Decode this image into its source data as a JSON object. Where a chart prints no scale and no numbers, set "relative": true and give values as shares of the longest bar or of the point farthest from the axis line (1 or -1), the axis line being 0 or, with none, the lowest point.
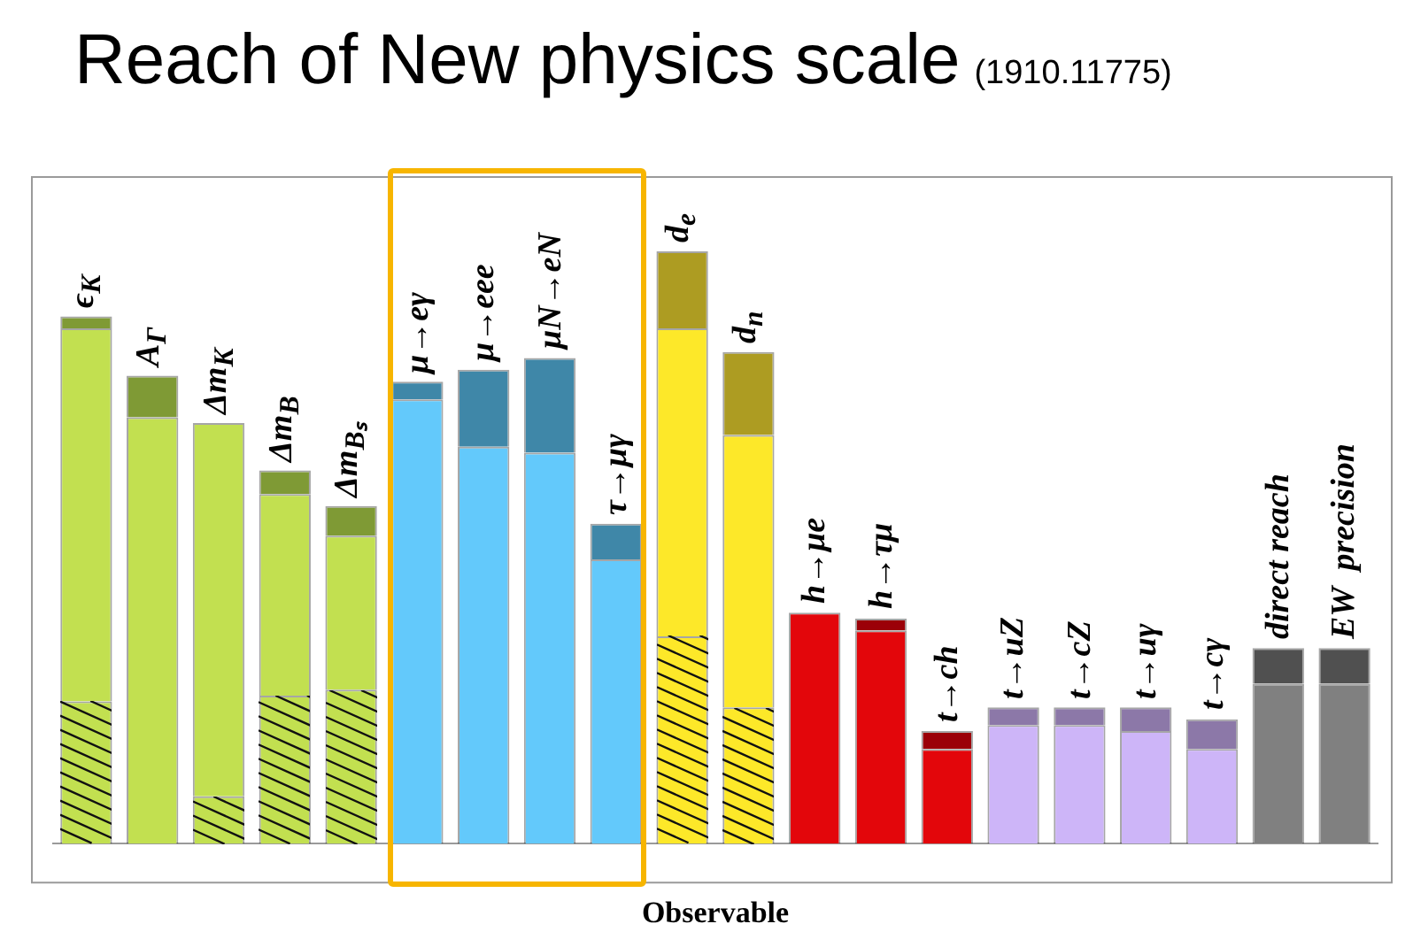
{
  "chart_data": {
    "type": "bar",
    "title": "Reach of New physics scale",
    "subtitle": "(1910.11775)",
    "xlabel": "Observable",
    "relative": true,
    "stacked": true,
    "legend": false,
    "grid": false,
    "categories": [
      "ϵ$_{K}$",
      "A$_{Γ}$",
      "Δm$_{K}$",
      "Δm$_{B}$",
      "Δm$_{Bₛ}$",
      "μ→eγ",
      "μ→eee",
      "μN→eN",
      "τ→μγ",
      "d$_{e}$",
      "d$_{n}$",
      "h→μe",
      "h→τμ",
      "t→ch",
      "t→uZ",
      "t→cZ",
      "t→uγ",
      "t→cγ",
      "direct reach",
      "EW  precision"
    ],
    "series": [
      {
        "values": [
          0.24,
          null,
          0.08,
          0.25,
          0.26,
          null,
          null,
          null,
          null,
          0.35,
          0.23,
          null,
          null,
          null,
          null,
          null,
          null,
          null,
          null,
          null
        ],
        "colors": [
          "#c2e050",
          "#c2e050",
          "#c2e050",
          "#c2e050",
          "#c2e050",
          "#63c9fb",
          "#63c9fb",
          "#63c9fb",
          "#63c9fb",
          "#fde829",
          "#fde829",
          "#e3060b",
          "#e3060b",
          "#e3060b",
          "#cdb5f8",
          "#cdb5f8",
          "#cdb5f8",
          "#cdb5f8",
          "#808080",
          "#808080"
        ]
      },
      {
        "values": [
          0.63,
          0.72,
          0.63,
          0.34,
          0.26,
          0.75,
          0.67,
          0.66,
          0.48,
          0.52,
          0.46,
          0.39,
          0.36,
          0.16,
          0.2,
          0.2,
          0.19,
          0.16,
          0.27,
          0.27
        ],
        "colors": [
          "#c2e050",
          "#c2e050",
          "#c2e050",
          "#c2e050",
          "#c2e050",
          "#63c9fb",
          "#63c9fb",
          "#63c9fb",
          "#63c9fb",
          "#fde829",
          "#fde829",
          "#e3060b",
          "#e3060b",
          "#e3060b",
          "#cdb5f8",
          "#cdb5f8",
          "#cdb5f8",
          "#cdb5f8",
          "#808080",
          "#808080"
        ]
      },
      {
        "values": [
          0.02,
          0.07,
          null,
          0.04,
          0.05,
          0.03,
          0.13,
          0.16,
          0.06,
          0.13,
          0.14,
          null,
          0.02,
          0.03,
          0.03,
          0.03,
          0.04,
          0.05,
          0.06,
          0.06
        ],
        "colors": [
          "#7f9a35",
          "#7f9a35",
          "#7f9a35",
          "#7f9a35",
          "#7f9a35",
          "#3f87a8",
          "#3f87a8",
          "#3f87a8",
          "#3f87a8",
          "#ad9c22",
          "#ad9c22",
          "#9b0008",
          "#9b0008",
          "#9b0008",
          "#8c78a8",
          "#8c78a8",
          "#8c78a8",
          "#8c78a8",
          "#505050",
          "#505050"
        ]
      }
    ]
  }
}
